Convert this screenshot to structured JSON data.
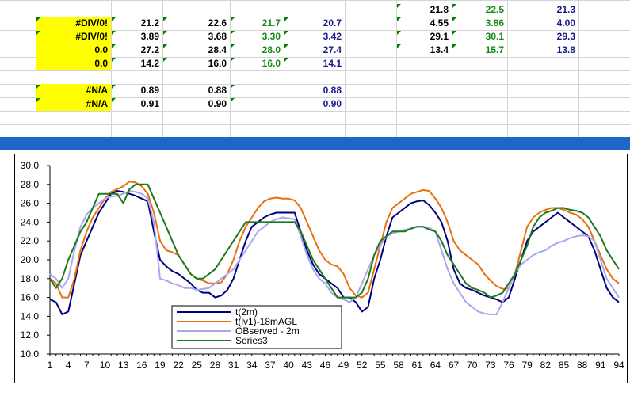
{
  "spreadsheet": {
    "cells": [
      {
        "text": "21.8",
        "color": "black",
        "tri": true
      },
      {
        "text": "22.5",
        "color": "green",
        "tri": true
      },
      {
        "text": "21.3",
        "color": "navy",
        "tri": false
      },
      {
        "text": "#DIV/0!",
        "color": "black",
        "tri": true,
        "fill": "yellow"
      },
      {
        "text": "21.2",
        "color": "black",
        "tri": true
      },
      {
        "text": "22.6",
        "color": "black",
        "tri": true
      },
      {
        "text": "21.7",
        "color": "green",
        "tri": true
      },
      {
        "text": "20.7",
        "color": "navy",
        "tri": true
      },
      {
        "text": "4.55",
        "color": "black",
        "tri": true
      },
      {
        "text": "3.86",
        "color": "green",
        "tri": true
      },
      {
        "text": "4.00",
        "color": "navy",
        "tri": false
      },
      {
        "text": "#DIV/0!",
        "color": "black",
        "tri": true,
        "fill": "yellow"
      },
      {
        "text": "3.89",
        "color": "black",
        "tri": true
      },
      {
        "text": "3.68",
        "color": "black",
        "tri": true
      },
      {
        "text": "3.30",
        "color": "green",
        "tri": true
      },
      {
        "text": "3.42",
        "color": "navy",
        "tri": true
      },
      {
        "text": "29.1",
        "color": "black",
        "tri": true
      },
      {
        "text": "30.1",
        "color": "green",
        "tri": true
      },
      {
        "text": "29.3",
        "color": "navy",
        "tri": false
      },
      {
        "text": "0.0",
        "color": "black",
        "tri": false,
        "fill": "yellow"
      },
      {
        "text": "27.2",
        "color": "black",
        "tri": true
      },
      {
        "text": "28.4",
        "color": "black",
        "tri": true
      },
      {
        "text": "28.0",
        "color": "green",
        "tri": true
      },
      {
        "text": "27.4",
        "color": "navy",
        "tri": true
      },
      {
        "text": "13.4",
        "color": "black",
        "tri": true
      },
      {
        "text": "15.7",
        "color": "green",
        "tri": true
      },
      {
        "text": "13.8",
        "color": "navy",
        "tri": false
      },
      {
        "text": "0.0",
        "color": "black",
        "tri": false,
        "fill": "yellow"
      },
      {
        "text": "14.2",
        "color": "black",
        "tri": true
      },
      {
        "text": "16.0",
        "color": "black",
        "tri": true
      },
      {
        "text": "16.0",
        "color": "green",
        "tri": true
      },
      {
        "text": "14.1",
        "color": "navy",
        "tri": true
      },
      {
        "text": "#N/A",
        "color": "black",
        "tri": true,
        "fill": "yellow"
      },
      {
        "text": "0.89",
        "color": "black",
        "tri": true
      },
      {
        "text": "0.88",
        "color": "black",
        "tri": false
      },
      {
        "text": "",
        "color": "green",
        "tri": true
      },
      {
        "text": "0.88",
        "color": "navy",
        "tri": false
      },
      {
        "text": "#N/A",
        "color": "black",
        "tri": true,
        "fill": "yellow"
      },
      {
        "text": "0.91",
        "color": "black",
        "tri": true
      },
      {
        "text": "0.90",
        "color": "black",
        "tri": false
      },
      {
        "text": "",
        "color": "green",
        "tri": true
      },
      {
        "text": "0.90",
        "color": "navy",
        "tri": false
      }
    ]
  },
  "colors": {
    "black": "#000000",
    "green": "#138a13",
    "navy": "#1a1a8c",
    "yellow": "#ffff00",
    "splitbar": "#1e66c8"
  },
  "chart_data": {
    "type": "line",
    "title": "",
    "xlabel": "",
    "ylabel": "",
    "ylim": [
      10.0,
      30.0
    ],
    "yticks": [
      "30.0",
      "28.0",
      "26.0",
      "24.0",
      "22.0",
      "20.0",
      "18.0",
      "16.0",
      "14.0",
      "12.0",
      "10.0"
    ],
    "xticks": [
      "1",
      "4",
      "7",
      "10",
      "13",
      "16",
      "19",
      "22",
      "25",
      "28",
      "31",
      "34",
      "37",
      "40",
      "43",
      "46",
      "49",
      "52",
      "55",
      "58",
      "61",
      "64",
      "67",
      "70",
      "73",
      "76",
      "79",
      "82",
      "85",
      "88",
      "91",
      "94"
    ],
    "x_range": [
      1,
      94
    ],
    "legend_position": "bottom-center",
    "series": [
      {
        "name": "t(2m)",
        "color": "#00007f",
        "values": [
          15.8,
          15.5,
          14.2,
          14.5,
          17.5,
          20.5,
          22.0,
          23.5,
          25.0,
          26.0,
          27.0,
          27.3,
          27.2,
          27.0,
          26.8,
          26.5,
          26.2,
          23.0,
          20.0,
          19.3,
          18.8,
          18.5,
          18.0,
          17.5,
          16.8,
          16.5,
          16.5,
          16.0,
          16.2,
          16.8,
          18.0,
          20.0,
          22.0,
          23.5,
          24.0,
          24.5,
          24.8,
          25.0,
          25.0,
          25.0,
          25.0,
          23.0,
          21.0,
          19.5,
          18.5,
          18.0,
          17.5,
          17.0,
          16.0,
          16.0,
          15.5,
          14.5,
          15.0,
          18.0,
          20.0,
          22.5,
          24.5,
          25.0,
          25.5,
          26.0,
          26.2,
          26.3,
          25.8,
          25.0,
          24.0,
          22.0,
          19.0,
          17.5,
          17.0,
          16.8,
          16.5,
          16.2,
          16.0,
          15.8,
          15.5,
          16.0,
          18.0,
          20.0,
          22.0,
          23.0,
          23.5,
          24.0,
          24.5,
          25.0,
          24.5,
          24.0,
          23.5,
          23.0,
          22.5,
          21.0,
          19.0,
          17.0,
          16.0,
          15.5
        ]
      },
      {
        "name": "t(lv1)-18mAGL",
        "color": "#e8700e",
        "values": [
          18.0,
          17.5,
          16.0,
          16.0,
          18.0,
          21.0,
          23.0,
          24.5,
          25.5,
          26.5,
          27.2,
          27.5,
          27.8,
          28.3,
          28.2,
          27.8,
          27.0,
          25.0,
          22.0,
          21.0,
          20.8,
          20.5,
          19.5,
          18.5,
          18.0,
          17.8,
          17.5,
          17.5,
          17.6,
          18.5,
          20.0,
          22.0,
          23.5,
          24.5,
          25.5,
          26.2,
          26.5,
          26.6,
          26.5,
          26.5,
          26.3,
          25.5,
          24.0,
          22.5,
          21.0,
          20.0,
          19.5,
          19.3,
          18.5,
          17.0,
          16.2,
          16.0,
          16.5,
          19.0,
          21.5,
          24.0,
          25.5,
          26.0,
          26.5,
          27.0,
          27.2,
          27.4,
          27.3,
          26.5,
          25.5,
          24.0,
          22.0,
          21.0,
          20.5,
          20.0,
          19.5,
          18.5,
          17.8,
          17.2,
          16.9,
          17.0,
          18.5,
          21.0,
          23.5,
          24.5,
          25.0,
          25.3,
          25.5,
          25.5,
          25.3,
          25.0,
          24.8,
          24.3,
          23.5,
          22.0,
          20.5,
          19.0,
          18.0,
          17.5
        ]
      },
      {
        "name": "OBserved - 2m",
        "color": "#a8a8f0",
        "values": [
          18.5,
          18.0,
          17.0,
          18.0,
          21.0,
          23.5,
          24.8,
          25.5,
          26.0,
          26.5,
          26.7,
          26.8,
          27.0,
          27.3,
          27.2,
          27.0,
          26.5,
          24.0,
          18.0,
          17.8,
          17.5,
          17.3,
          17.0,
          17.0,
          16.8,
          16.9,
          17.0,
          17.5,
          18.0,
          18.5,
          19.0,
          20.0,
          21.0,
          22.0,
          23.0,
          23.5,
          24.0,
          24.3,
          24.5,
          24.4,
          24.3,
          22.5,
          20.5,
          19.0,
          18.0,
          17.5,
          16.5,
          16.0,
          15.8,
          15.5,
          16.0,
          17.5,
          19.0,
          20.5,
          21.5,
          22.5,
          22.8,
          23.0,
          23.2,
          23.3,
          23.5,
          23.5,
          23.4,
          23.0,
          21.0,
          19.0,
          17.5,
          16.5,
          15.5,
          15.0,
          14.5,
          14.3,
          14.2,
          14.2,
          15.5,
          17.0,
          18.5,
          19.5,
          20.0,
          20.5,
          20.8,
          21.0,
          21.5,
          21.8,
          22.0,
          22.3,
          22.5,
          22.6,
          22.5,
          22.0,
          20.0,
          18.0,
          17.0,
          16.0
        ]
      },
      {
        "name": "Series3",
        "color": "#1c7a1c",
        "values": [
          18.0,
          17.0,
          18.0,
          20.0,
          21.5,
          23.0,
          24.0,
          25.5,
          27.0,
          27.0,
          27.0,
          27.0,
          26.0,
          27.5,
          28.0,
          28.0,
          28.0,
          26.5,
          25.0,
          23.5,
          22.0,
          20.5,
          19.5,
          18.5,
          18.0,
          18.0,
          18.5,
          19.0,
          20.0,
          21.0,
          22.0,
          23.0,
          24.0,
          24.0,
          24.0,
          24.0,
          24.0,
          24.0,
          24.0,
          24.0,
          24.0,
          23.0,
          21.5,
          20.0,
          19.0,
          18.0,
          17.0,
          16.0,
          16.0,
          16.0,
          16.0,
          16.5,
          18.0,
          20.5,
          22.0,
          22.5,
          23.0,
          23.0,
          23.0,
          23.3,
          23.5,
          23.5,
          23.2,
          23.0,
          22.0,
          20.5,
          19.5,
          18.5,
          17.5,
          17.0,
          16.8,
          16.5,
          16.0,
          16.2,
          16.5,
          17.5,
          18.5,
          20.0,
          21.5,
          23.5,
          24.5,
          25.0,
          25.2,
          25.5,
          25.5,
          25.3,
          25.2,
          25.0,
          24.5,
          23.5,
          22.5,
          21.0,
          20.0,
          19.0
        ]
      }
    ]
  }
}
